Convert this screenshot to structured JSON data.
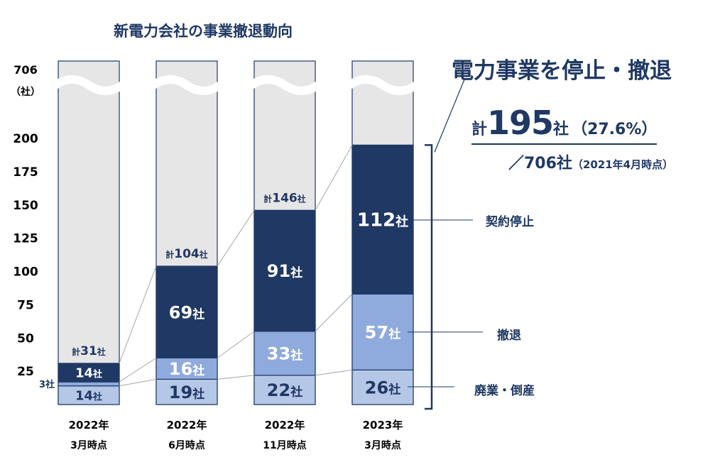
{
  "chart_data": {
    "type": "bar",
    "stacked": true,
    "title": "新電力会社の事業撤退動向",
    "categories": [
      [
        "2022年",
        "3月時点"
      ],
      [
        "2022年",
        "6月時点"
      ],
      [
        "2022年",
        "11月時点"
      ],
      [
        "2023年",
        "3月時点"
      ]
    ],
    "series": [
      {
        "name": "廃業・倒産",
        "values": [
          14,
          19,
          22,
          26
        ],
        "labels": [
          "14社",
          "19社",
          "22社",
          "26社"
        ],
        "color": "#b4c7e7"
      },
      {
        "name": "撤退",
        "values": [
          3,
          16,
          33,
          57
        ],
        "labels": [
          "3社",
          "16社",
          "33社",
          "57社"
        ],
        "color": "#8faadc"
      },
      {
        "name": "契約停止",
        "values": [
          14,
          69,
          91,
          112
        ],
        "labels": [
          "14社",
          "69社",
          "91社",
          "112社"
        ],
        "color": "#203864"
      }
    ],
    "totals": [
      31,
      104,
      146,
      195
    ],
    "total_labels": [
      {
        "prefix": "計",
        "number": "31",
        "unit": "社"
      },
      {
        "prefix": "計",
        "number": "104",
        "unit": "社"
      },
      {
        "prefix": "計",
        "number": "146",
        "unit": "社"
      },
      {
        "prefix": "計",
        "number": "195",
        "unit": "社"
      }
    ],
    "capacity": 706,
    "yticks": [
      "200",
      "175",
      "150",
      "125",
      "100",
      "75",
      "50",
      "25"
    ],
    "ytick_values": [
      200,
      175,
      150,
      125,
      100,
      75,
      50,
      25
    ],
    "ytop_label": [
      "706",
      "（社）"
    ],
    "ylim": [
      0,
      200
    ],
    "legend_labels": [
      "契約停止",
      "撤退",
      "廃業・倒産"
    ],
    "headline": "電力事業を停止・撤退",
    "total_summary": {
      "prefix": "計",
      "number": "195",
      "unit": "社",
      "pct": "（27.6%）"
    },
    "denominator": {
      "text": "／706社",
      "note": "（2021年4月時点）"
    },
    "colors": {
      "background_bar": "#e7e6e6",
      "border": "#1f3864",
      "text_dark": "#1f3864",
      "connector": "#a6a6a6"
    }
  }
}
